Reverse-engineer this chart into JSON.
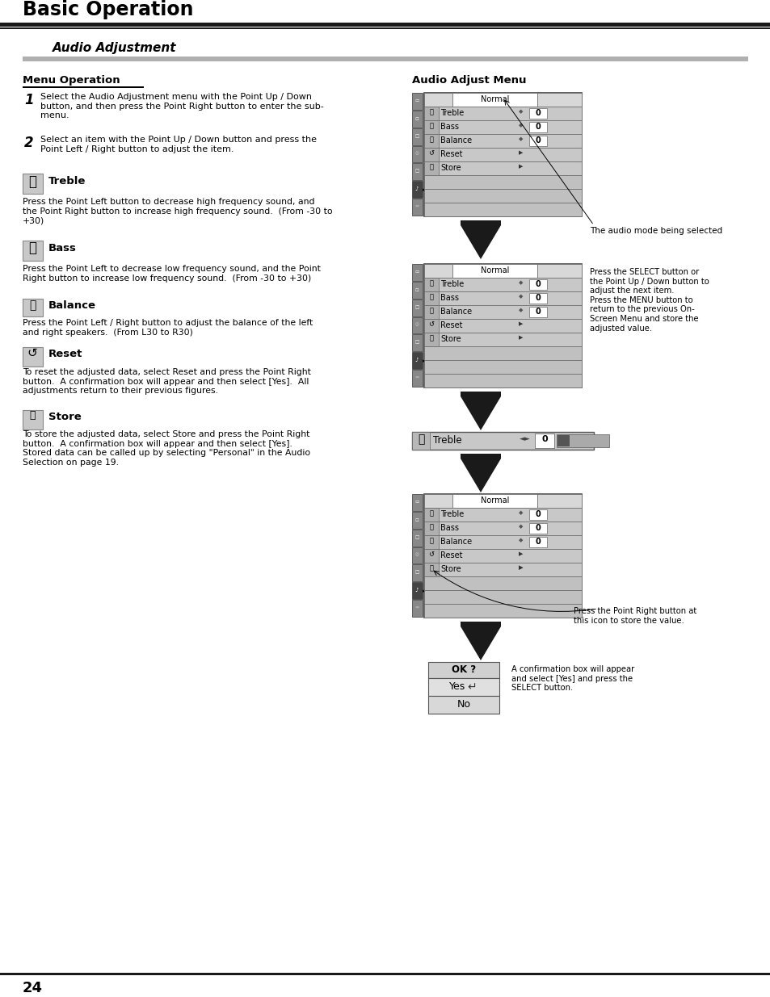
{
  "page_title": "Basic Operation",
  "section_title": "Audio Adjustment",
  "left_col": {
    "menu_op_title": "Menu Operation",
    "step1_num": "1",
    "step1": "Select the Audio Adjustment menu with the Point Up / Down\nbutton, and then press the Point Right button to enter the sub-\nmenu.",
    "step2_num": "2",
    "step2": "Select an item with the Point Up / Down button and press the\nPoint Left / Right button to adjust the item.",
    "treble_title": "Treble",
    "treble_text": "Press the Point Left button to decrease high frequency sound, and\nthe Point Right button to increase high frequency sound.  (From -30 to\n+30)",
    "bass_title": "Bass",
    "bass_text": "Press the Point Left to decrease low frequency sound, and the Point\nRight button to increase low frequency sound.  (From -30 to +30)",
    "balance_title": "Balance",
    "balance_text": "Press the Point Left / Right button to adjust the balance of the left\nand right speakers.  (From L30 to R30)",
    "reset_title": "Reset",
    "reset_text": "To reset the adjusted data, select Reset and press the Point Right\nbutton.  A confirmation box will appear and then select [Yes].  All\nadjustments return to their previous figures.",
    "store_title": "Store",
    "store_text": "To store the adjusted data, select Store and press the Point Right\nbutton.  A confirmation box will appear and then select [Yes].\nStored data can be called up by selecting \"Personal\" in the Audio\nSelection on page 19."
  },
  "right_col": {
    "audio_menu_title": "Audio Adjust Menu",
    "note1": "The audio mode being selected",
    "note2": "Press the SELECT button or\nthe Point Up / Down button to\nadjust the next item.\nPress the MENU button to\nreturn to the previous On-\nScreen Menu and store the\nadjusted value.",
    "note3": "Press the Point Right button at\nthis icon to store the value.",
    "note4": "A confirmation box will appear\nand select [Yes] and press the\nSELECT button.",
    "confirm_ok": "OK ?",
    "confirm_yes": "Yes",
    "confirm_no": "No"
  },
  "page_number": "24",
  "bg_color": "#ffffff",
  "header_line1_color": "#1a1a1a",
  "header_line2_color": "#1a1a1a",
  "gray_bar_color": "#b0b0b0",
  "menu_gray": "#c8c8c8",
  "menu_darkgray": "#b0b0b0",
  "menu_lightgray": "#d8d8d8",
  "menu_white": "#ffffff",
  "tab_gray": "#888888",
  "arrow_color": "#1a1a1a",
  "border_color": "#555555"
}
